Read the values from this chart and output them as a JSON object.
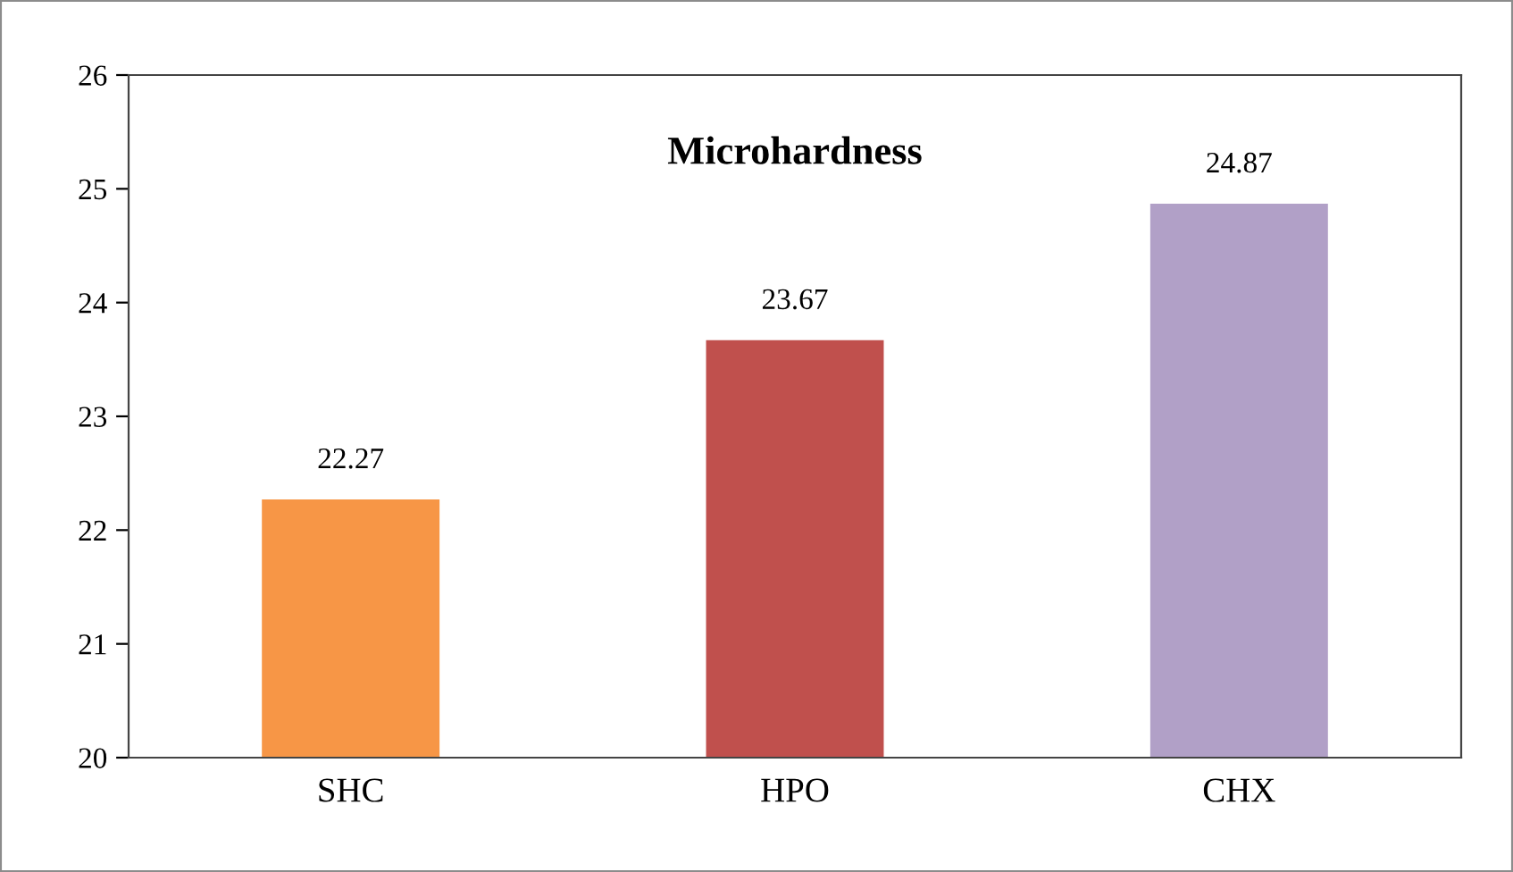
{
  "chart_data": {
    "type": "bar",
    "title": "Microhardness",
    "categories": [
      "SHC",
      "HPO",
      "CHX"
    ],
    "values": [
      22.27,
      23.67,
      24.87
    ],
    "colors": [
      "#f79646",
      "#c0504d",
      "#b1a0c7"
    ],
    "ylim": [
      20,
      26
    ],
    "yticks": [
      20,
      21,
      22,
      23,
      24,
      25,
      26
    ],
    "data_labels": true,
    "grid": false
  }
}
